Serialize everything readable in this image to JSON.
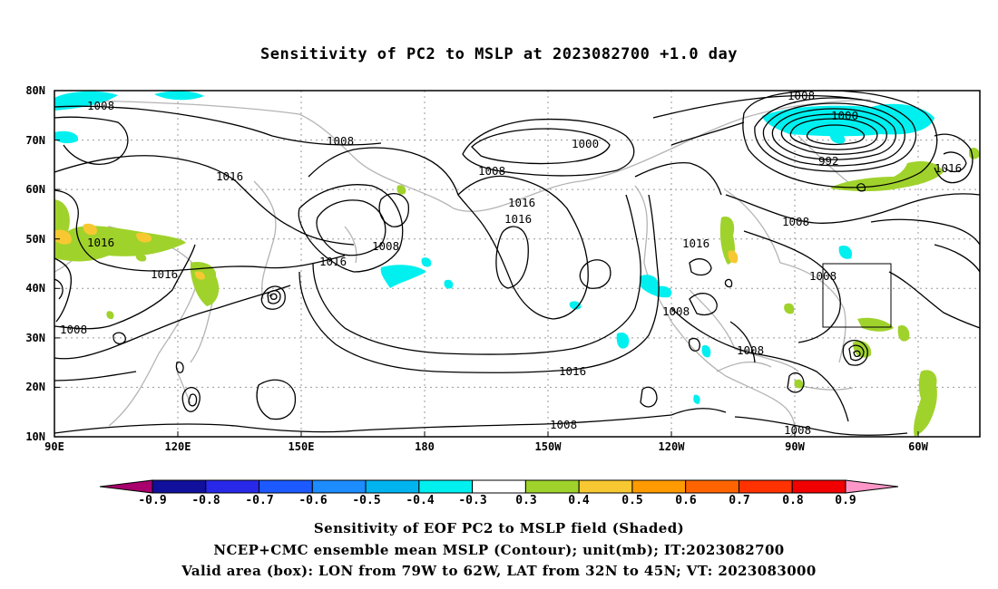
{
  "title": "Sensitivity of PC2 to MSLP at 2023082700 +1.0 day",
  "lat_labels": [
    "80N",
    "70N",
    "60N",
    "50N",
    "40N",
    "30N",
    "20N",
    "10N"
  ],
  "lon_labels": [
    "90E",
    "120E",
    "150E",
    "180",
    "150W",
    "120W",
    "90W",
    "60W"
  ],
  "contour_labels": [
    "1008",
    "1008",
    "1016",
    "1016",
    "1016",
    "1008",
    "1008",
    "1016",
    "1016",
    "1008",
    "1000",
    "1008",
    "1016",
    "1008",
    "1000",
    "992",
    "1008",
    "1016",
    "1016",
    "1008",
    "1008",
    "1008",
    "1008",
    "1016"
  ],
  "colorbar": {
    "labels": [
      "-0.9",
      "-0.8",
      "-0.7",
      "-0.6",
      "-0.5",
      "-0.4",
      "-0.3",
      "0.3",
      "0.4",
      "0.5",
      "0.6",
      "0.7",
      "0.8",
      "0.9"
    ],
    "colors": [
      "#a8006c",
      "#10109c",
      "#2828e8",
      "#1c5aff",
      "#1c8cff",
      "#00b4f0",
      "#00f0f0",
      "#ffffff",
      "#a0d22c",
      "#f8c832",
      "#ff9a00",
      "#ff6400",
      "#ff3200",
      "#f00000",
      "#ff96c8"
    ]
  },
  "captions": [
    "Sensitivity of EOF PC2 to MSLP field (Shaded)",
    "NCEP+CMC ensemble mean MSLP (Contour); unit(mb); IT:2023082700",
    "Valid area (box): LON from 79W to 62W, LAT from 32N to 45N; VT: 2023083000"
  ]
}
